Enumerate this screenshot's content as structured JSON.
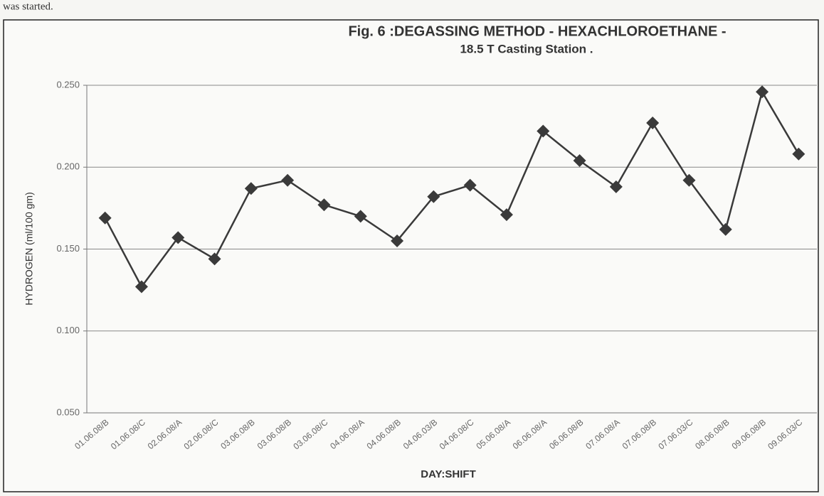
{
  "caption_text": "was started.",
  "chart_data": {
    "type": "line",
    "title": "Fig. 6 :DEGASSING METHOD - HEXACHLOROETHANE -",
    "subtitle": "18.5 T Casting Station .",
    "x_label": "DAY:SHIFT",
    "y_label": "HYDROGEN (ml/100 gm)",
    "categories": [
      "01.06.08/B",
      "01.06.08/C",
      "02.06.08/A",
      "02.06.08/C",
      "03.06.08/B",
      "03.06.08/B",
      "03.06.08/C",
      "04.06.08/A",
      "04.06.08/B",
      "04.06.03/B",
      "04.06.08/C",
      "05.06.08/A",
      "06.06.08/A",
      "06.06.08/B",
      "07.06.08/A",
      "07.06.08/B",
      "07.06.03/C",
      "08.06.08/B",
      "09.06.08/B",
      "09.06.03/C"
    ],
    "values": [
      0.169,
      0.127,
      0.157,
      0.144,
      0.187,
      0.192,
      0.177,
      0.17,
      0.155,
      0.182,
      0.189,
      0.171,
      0.222,
      0.204,
      0.188,
      0.227,
      0.192,
      0.162,
      0.246,
      0.208
    ],
    "color": "#3a3a3a",
    "ylim": [
      0.05,
      0.25
    ],
    "yticks": [
      {
        "value": 0.05,
        "label": "0.050"
      },
      {
        "value": 0.1,
        "label": "0.100"
      },
      {
        "value": 0.15,
        "label": "0.150"
      },
      {
        "value": 0.2,
        "label": "0.200"
      },
      {
        "value": 0.25,
        "label": "0.250"
      }
    ],
    "grid": true
  }
}
